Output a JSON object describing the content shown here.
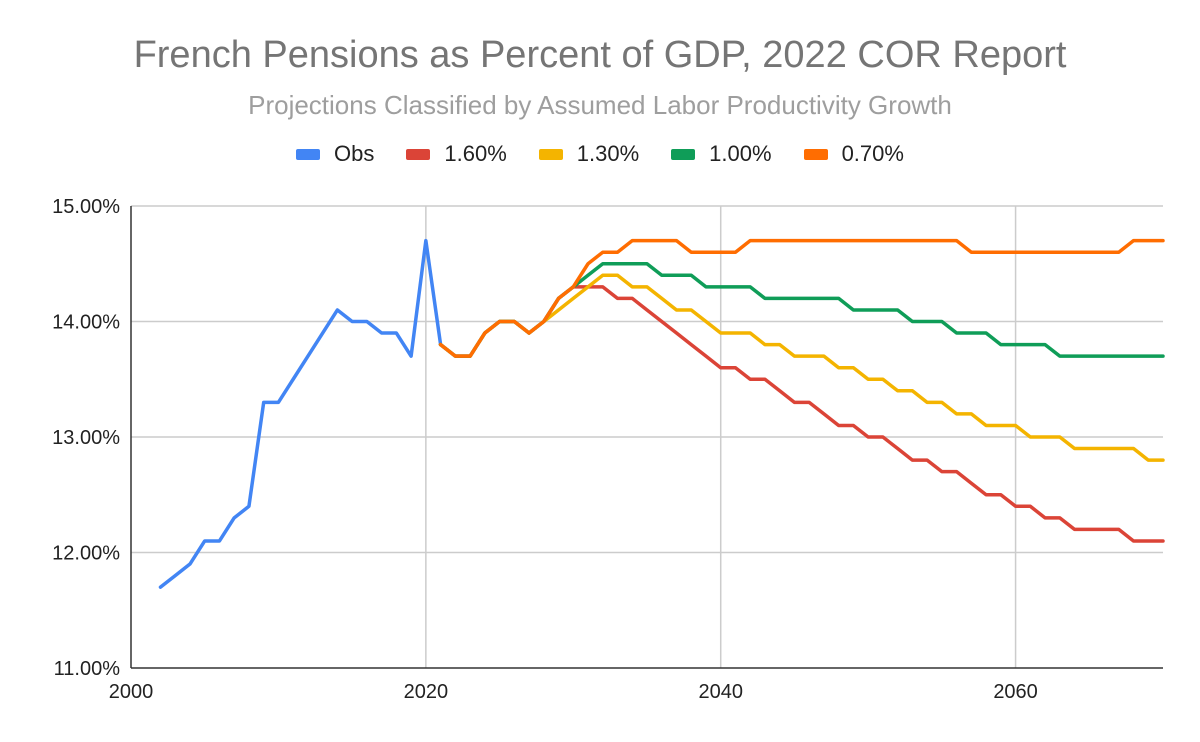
{
  "chart_data": {
    "type": "line",
    "title": "French Pensions as Percent of GDP, 2022 COR Report",
    "subtitle": "Projections Classified by Assumed Labor Productivity Growth",
    "xlabel": "",
    "ylabel": "",
    "xlim": [
      2000,
      2070
    ],
    "ylim": [
      11,
      15
    ],
    "x_ticks": [
      2000,
      2020,
      2040,
      2060
    ],
    "x_tick_labels": [
      "2000",
      "2020",
      "2040",
      "2060"
    ],
    "y_ticks": [
      11,
      12,
      13,
      14,
      15
    ],
    "y_tick_labels": [
      "11.00%",
      "12.00%",
      "13.00%",
      "14.00%",
      "15.00%"
    ],
    "grid": true,
    "legend_position": "top",
    "series": [
      {
        "name": "Obs",
        "color": "#4285f4",
        "x": [
          2002,
          2003,
          2004,
          2005,
          2006,
          2007,
          2008,
          2009,
          2010,
          2011,
          2012,
          2013,
          2014,
          2015,
          2016,
          2017,
          2018,
          2019,
          2020,
          2021
        ],
        "values": [
          11.7,
          11.8,
          11.9,
          12.1,
          12.1,
          12.3,
          12.4,
          13.3,
          13.3,
          13.5,
          13.7,
          13.9,
          14.1,
          14.0,
          14.0,
          13.9,
          13.9,
          13.7,
          14.7,
          13.8
        ]
      },
      {
        "name": "1.60%",
        "color": "#db4437",
        "x": [
          2021,
          2022,
          2023,
          2024,
          2025,
          2026,
          2027,
          2028,
          2029,
          2030,
          2031,
          2032,
          2033,
          2034,
          2035,
          2036,
          2037,
          2038,
          2039,
          2040,
          2041,
          2042,
          2043,
          2044,
          2045,
          2046,
          2047,
          2048,
          2049,
          2050,
          2051,
          2052,
          2053,
          2054,
          2055,
          2056,
          2057,
          2058,
          2059,
          2060,
          2061,
          2062,
          2063,
          2064,
          2065,
          2066,
          2067,
          2068,
          2069,
          2070
        ],
        "values": [
          13.8,
          13.7,
          13.7,
          13.9,
          14.0,
          14.0,
          13.9,
          14.0,
          14.2,
          14.3,
          14.3,
          14.3,
          14.2,
          14.2,
          14.1,
          14.0,
          13.9,
          13.8,
          13.7,
          13.6,
          13.6,
          13.5,
          13.5,
          13.4,
          13.3,
          13.3,
          13.2,
          13.1,
          13.1,
          13.0,
          13.0,
          12.9,
          12.8,
          12.8,
          12.7,
          12.7,
          12.6,
          12.5,
          12.5,
          12.4,
          12.4,
          12.3,
          12.3,
          12.2,
          12.2,
          12.2,
          12.2,
          12.1,
          12.1,
          12.1
        ]
      },
      {
        "name": "1.30%",
        "color": "#f4b400",
        "x": [
          2021,
          2022,
          2023,
          2024,
          2025,
          2026,
          2027,
          2028,
          2029,
          2030,
          2031,
          2032,
          2033,
          2034,
          2035,
          2036,
          2037,
          2038,
          2039,
          2040,
          2041,
          2042,
          2043,
          2044,
          2045,
          2046,
          2047,
          2048,
          2049,
          2050,
          2051,
          2052,
          2053,
          2054,
          2055,
          2056,
          2057,
          2058,
          2059,
          2060,
          2061,
          2062,
          2063,
          2064,
          2065,
          2066,
          2067,
          2068,
          2069,
          2070
        ],
        "values": [
          13.8,
          13.7,
          13.7,
          13.9,
          14.0,
          14.0,
          13.9,
          14.0,
          14.1,
          14.2,
          14.3,
          14.4,
          14.4,
          14.3,
          14.3,
          14.2,
          14.1,
          14.1,
          14.0,
          13.9,
          13.9,
          13.9,
          13.8,
          13.8,
          13.7,
          13.7,
          13.7,
          13.6,
          13.6,
          13.5,
          13.5,
          13.4,
          13.4,
          13.3,
          13.3,
          13.2,
          13.2,
          13.1,
          13.1,
          13.1,
          13.0,
          13.0,
          13.0,
          12.9,
          12.9,
          12.9,
          12.9,
          12.9,
          12.8,
          12.8
        ]
      },
      {
        "name": "1.00%",
        "color": "#0f9d58",
        "x": [
          2021,
          2022,
          2023,
          2024,
          2025,
          2026,
          2027,
          2028,
          2029,
          2030,
          2031,
          2032,
          2033,
          2034,
          2035,
          2036,
          2037,
          2038,
          2039,
          2040,
          2041,
          2042,
          2043,
          2044,
          2045,
          2046,
          2047,
          2048,
          2049,
          2050,
          2051,
          2052,
          2053,
          2054,
          2055,
          2056,
          2057,
          2058,
          2059,
          2060,
          2061,
          2062,
          2063,
          2064,
          2065,
          2066,
          2067,
          2068,
          2069,
          2070
        ],
        "values": [
          13.8,
          13.7,
          13.7,
          13.9,
          14.0,
          14.0,
          13.9,
          14.0,
          14.2,
          14.3,
          14.4,
          14.5,
          14.5,
          14.5,
          14.5,
          14.4,
          14.4,
          14.4,
          14.3,
          14.3,
          14.3,
          14.3,
          14.2,
          14.2,
          14.2,
          14.2,
          14.2,
          14.2,
          14.1,
          14.1,
          14.1,
          14.1,
          14.0,
          14.0,
          14.0,
          13.9,
          13.9,
          13.9,
          13.8,
          13.8,
          13.8,
          13.8,
          13.7,
          13.7,
          13.7,
          13.7,
          13.7,
          13.7,
          13.7,
          13.7
        ]
      },
      {
        "name": "0.70%",
        "color": "#ff6d01",
        "x": [
          2021,
          2022,
          2023,
          2024,
          2025,
          2026,
          2027,
          2028,
          2029,
          2030,
          2031,
          2032,
          2033,
          2034,
          2035,
          2036,
          2037,
          2038,
          2039,
          2040,
          2041,
          2042,
          2043,
          2044,
          2045,
          2046,
          2047,
          2048,
          2049,
          2050,
          2051,
          2052,
          2053,
          2054,
          2055,
          2056,
          2057,
          2058,
          2059,
          2060,
          2061,
          2062,
          2063,
          2064,
          2065,
          2066,
          2067,
          2068,
          2069,
          2070
        ],
        "values": [
          13.8,
          13.7,
          13.7,
          13.9,
          14.0,
          14.0,
          13.9,
          14.0,
          14.2,
          14.3,
          14.5,
          14.6,
          14.6,
          14.7,
          14.7,
          14.7,
          14.7,
          14.6,
          14.6,
          14.6,
          14.6,
          14.7,
          14.7,
          14.7,
          14.7,
          14.7,
          14.7,
          14.7,
          14.7,
          14.7,
          14.7,
          14.7,
          14.7,
          14.7,
          14.7,
          14.7,
          14.6,
          14.6,
          14.6,
          14.6,
          14.6,
          14.6,
          14.6,
          14.6,
          14.6,
          14.6,
          14.6,
          14.7,
          14.7,
          14.7
        ]
      }
    ]
  }
}
